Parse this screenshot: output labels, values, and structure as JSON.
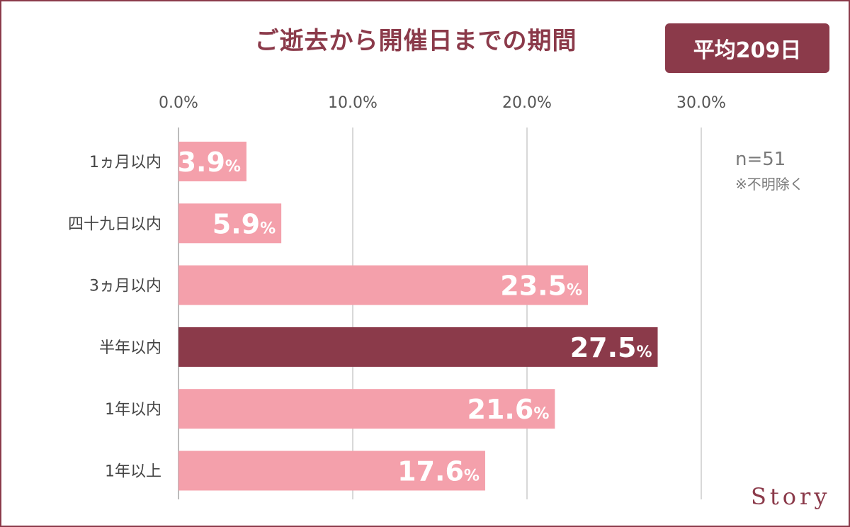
{
  "header": {
    "title": "ご逝去から開催日までの期間",
    "badge": "平均209日"
  },
  "note": {
    "n": "n=51",
    "exclusion": "※不明除く"
  },
  "brand": {
    "logo": "Story"
  },
  "colors": {
    "accent": "#8b3a4a",
    "bar": "#f4a0ab",
    "highlight": "#8b3a4a",
    "grid": "#cccccc"
  },
  "chart_data": {
    "type": "bar",
    "orientation": "horizontal",
    "title": "ご逝去から開催日までの期間",
    "categories": [
      "1ヵ月以内",
      "四十九日以内",
      "3ヵ月以内",
      "半年以内",
      "1年以内",
      "1年以上"
    ],
    "values": [
      3.9,
      5.9,
      23.5,
      27.5,
      21.6,
      17.6
    ],
    "value_labels": [
      "3.9",
      "5.9",
      "23.5",
      "27.5",
      "21.6",
      "17.6"
    ],
    "value_unit": "%",
    "highlight_index": 3,
    "xlim": [
      0,
      30
    ],
    "xticks": [
      "0.0%",
      "10.0%",
      "20.0%",
      "30.0%"
    ],
    "grid": true,
    "legend": "none"
  }
}
